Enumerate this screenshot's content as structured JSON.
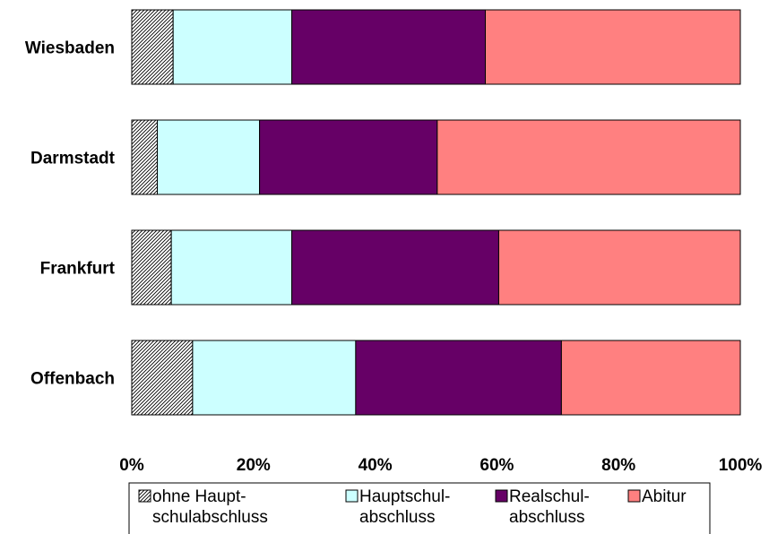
{
  "chart_data": {
    "type": "bar",
    "orientation": "horizontal",
    "stacked": "percent",
    "categories": [
      "Wiesbaden",
      "Darmstadt",
      "Frankfurt",
      "Offenbach"
    ],
    "series": [
      {
        "name": "ohne Haupt-schulabschluss",
        "name_lines": [
          "ohne Haupt-",
          "schulabschluss"
        ],
        "values": [
          6.8,
          4.2,
          6.5,
          10.0
        ],
        "color": "#ffffff",
        "pattern": "hatch"
      },
      {
        "name": "Hauptschul-abschluss",
        "name_lines": [
          "Hauptschul-",
          "abschluss"
        ],
        "values": [
          19.5,
          16.8,
          19.8,
          26.8
        ],
        "color": "#ccffff"
      },
      {
        "name": "Realschul-abschluss",
        "name_lines": [
          "Realschul-",
          "abschluss"
        ],
        "values": [
          31.8,
          29.2,
          34.0,
          33.8
        ],
        "color": "#660066"
      },
      {
        "name": "Abitur",
        "name_lines": [
          "Abitur"
        ],
        "values": [
          41.9,
          49.8,
          39.7,
          29.4
        ],
        "color": "#ff8080"
      }
    ],
    "xlim": [
      0,
      100
    ],
    "x_ticks": [
      "0%",
      "20%",
      "40%",
      "60%",
      "80%",
      "100%"
    ],
    "grid": false,
    "legend_position": "bottom",
    "title": "",
    "xlabel": "",
    "ylabel": ""
  }
}
